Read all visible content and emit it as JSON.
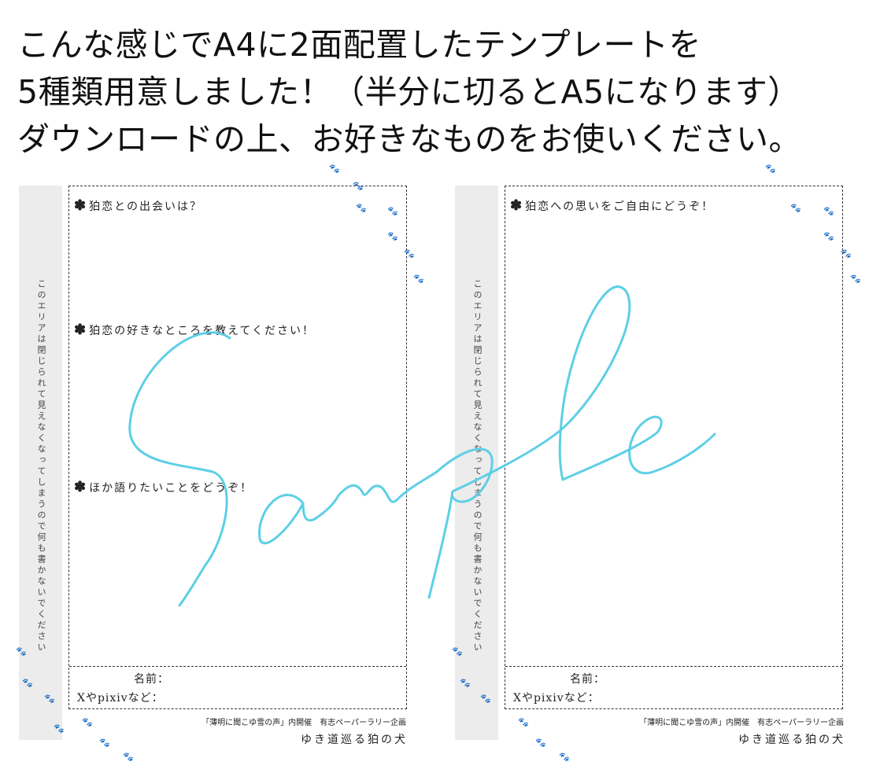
{
  "headline": [
    "こんな感じでA4に2面配置したテンプレートを",
    "5種類用意しました！（半分に切るとA5になります）",
    "ダウンロードの上、お好きなものをお使いください。"
  ],
  "pages": [
    {
      "questions": [
        "狛恋との出会いは？",
        "狛恋の好きなところを教えてください！",
        "ほか語りたいことをどうぞ！"
      ]
    },
    {
      "questions": [
        "狛恋への思いをご自由にどうぞ！"
      ]
    }
  ],
  "strip_note": "このエリアは閉じられて見えなくなってしまうので何も書かないでください",
  "fields": {
    "name": "名前：",
    "sns": "Xやpixivなど："
  },
  "credit": "「薄明に聞こゆ雪の声」内開催　有志ペーパーラリー企画",
  "circle": "ゆき道巡る狛の犬",
  "watermark": "Sample",
  "watermark_color": "#5dcfe6",
  "icons": {
    "bullet": "asterisk-flower-icon",
    "decor": "paw-print-icon"
  }
}
